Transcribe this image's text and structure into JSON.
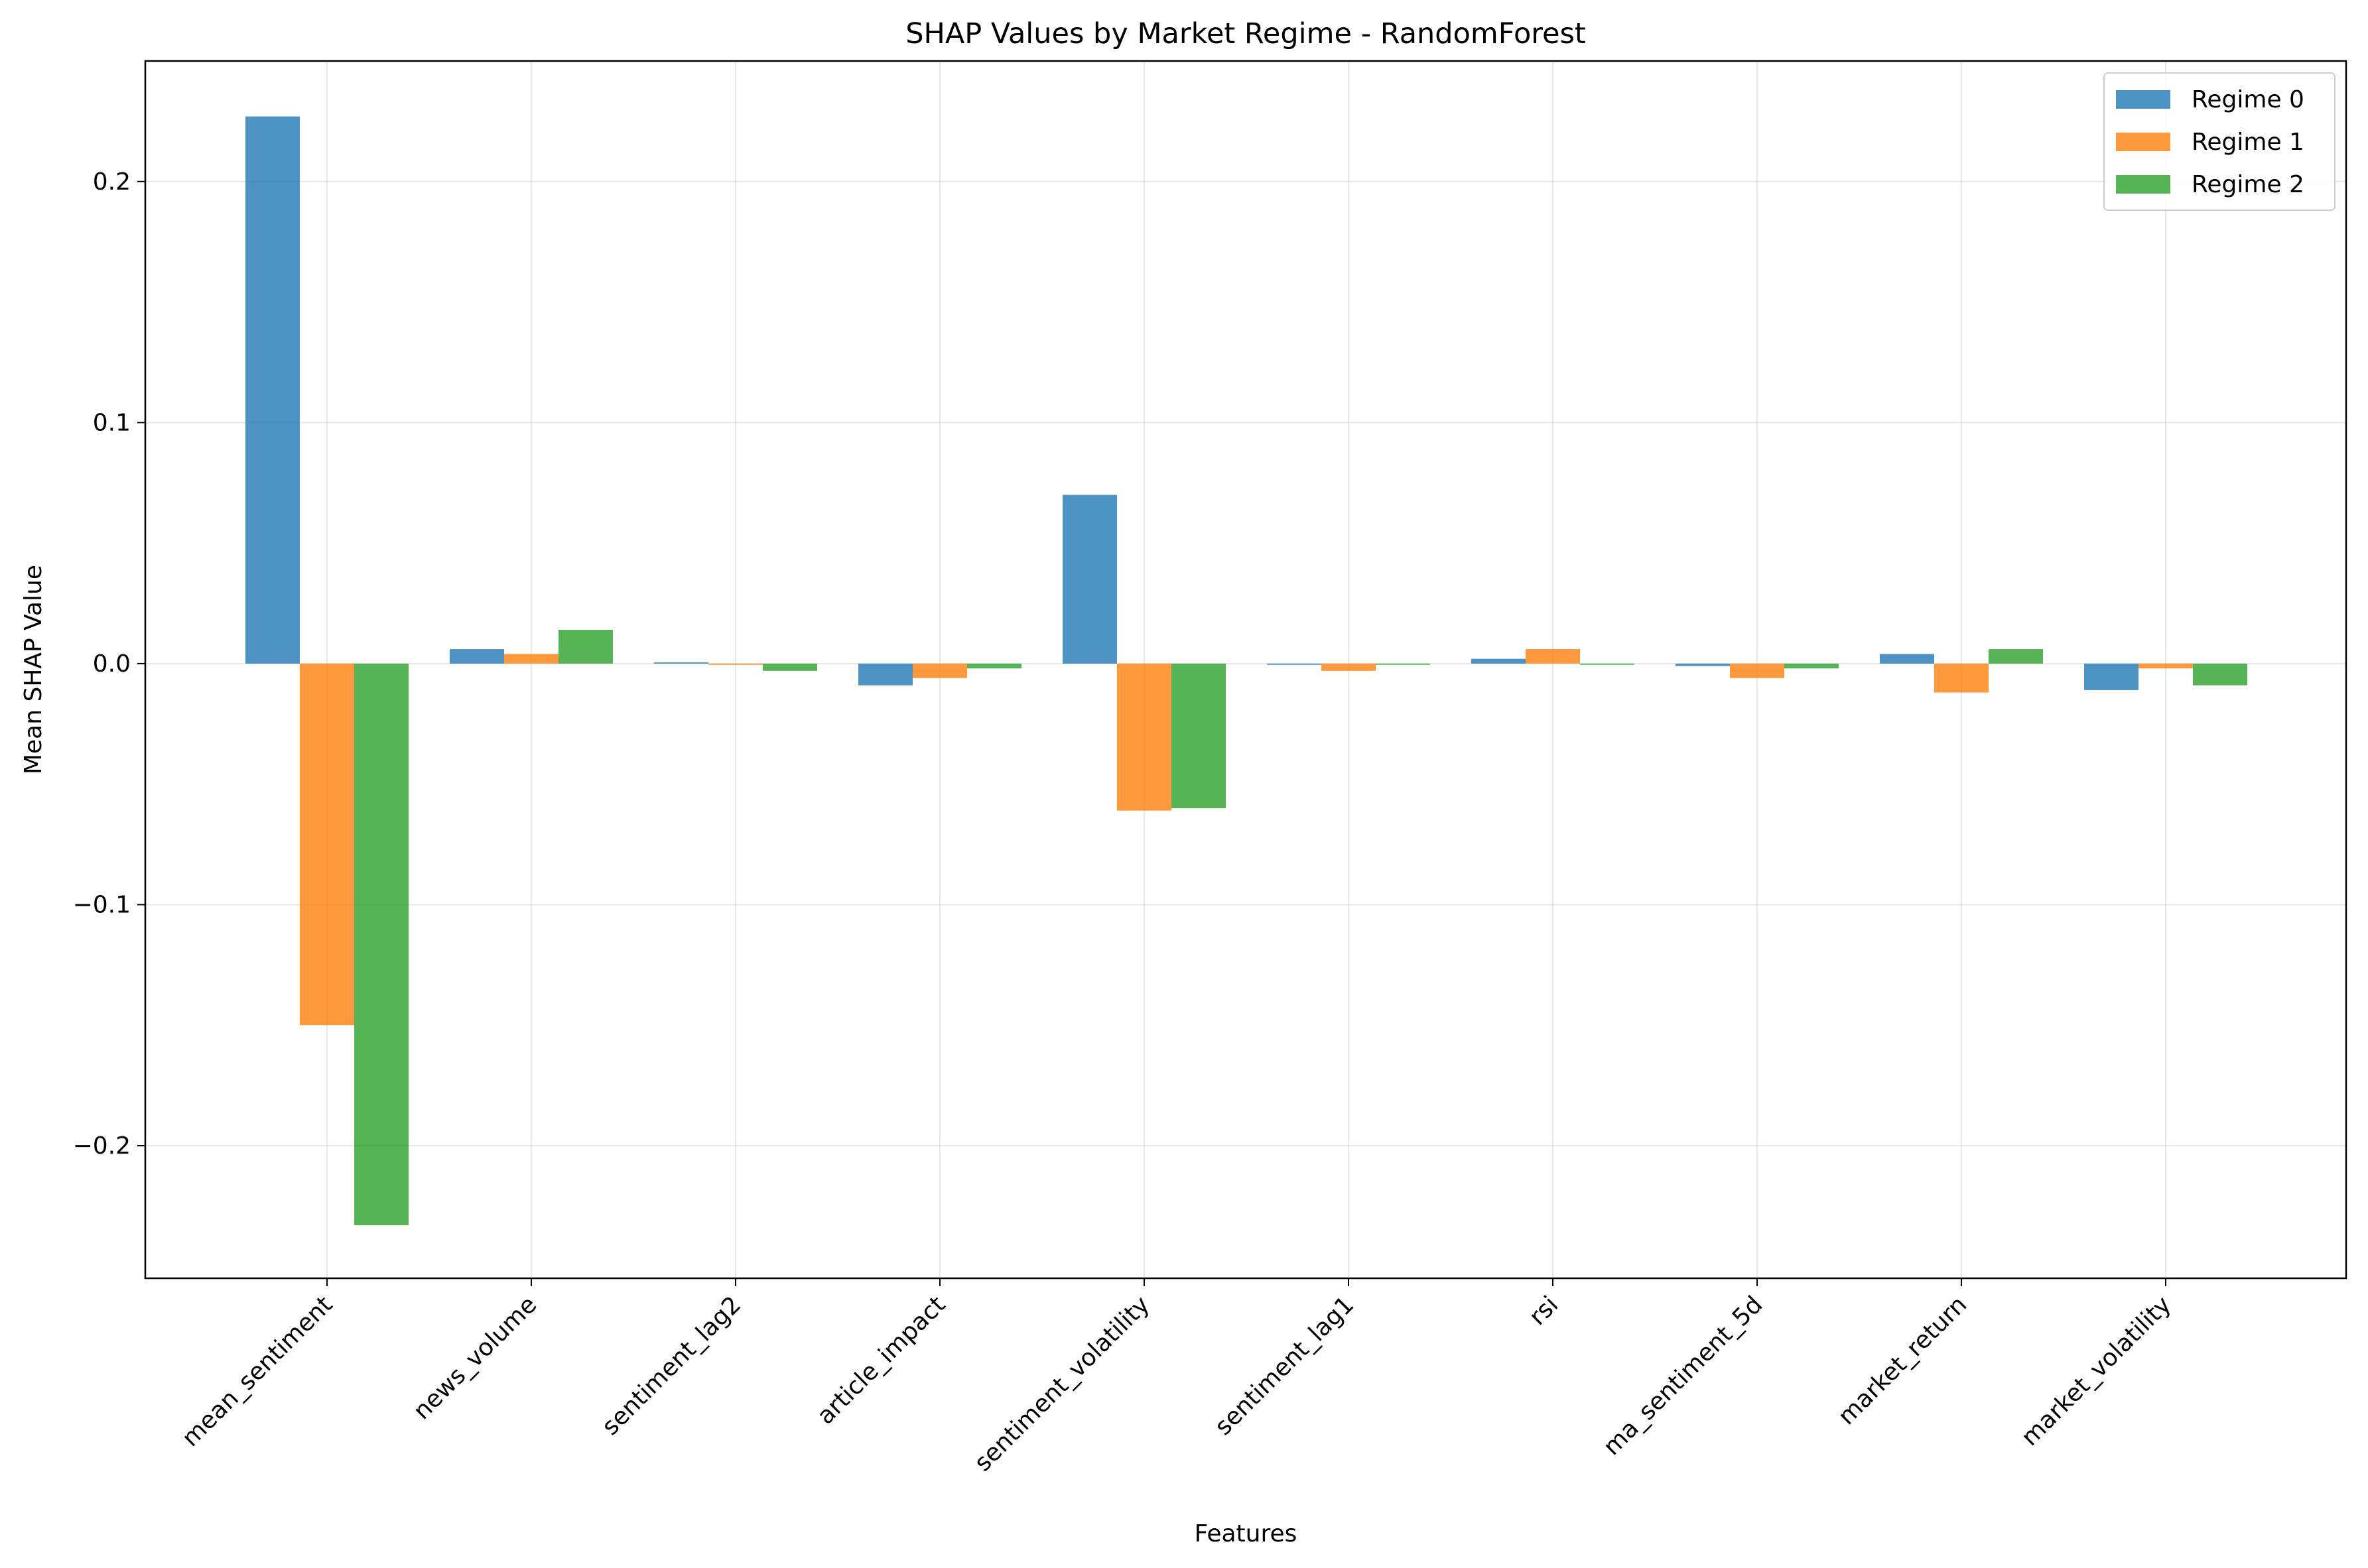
{
  "chart_data": {
    "type": "bar",
    "title": "SHAP Values by Market Regime - RandomForest",
    "xlabel": "Features",
    "ylabel": "Mean SHAP Value",
    "ylim": [
      -0.255,
      0.25
    ],
    "yticks": [
      -0.2,
      -0.1,
      0.0,
      0.1,
      0.2
    ],
    "ytick_labels": [
      "−0.2",
      "−0.1",
      "0.0",
      "0.1",
      "0.2"
    ],
    "grid": true,
    "legend_position": "top-right",
    "categories": [
      "mean_sentiment",
      "news_volume",
      "sentiment_lag2",
      "article_impact",
      "sentiment_volatility",
      "sentiment_lag1",
      "rsi",
      "ma_sentiment_5d",
      "market_return",
      "market_volatility"
    ],
    "series": [
      {
        "name": "Regime 0",
        "color": "#1f77b4",
        "values": [
          0.227,
          0.006,
          0.0005,
          -0.009,
          0.07,
          -0.0005,
          0.002,
          -0.001,
          0.004,
          -0.011
        ]
      },
      {
        "name": "Regime 1",
        "color": "#ff7f0e",
        "values": [
          -0.15,
          0.004,
          -0.0005,
          -0.006,
          -0.061,
          -0.003,
          0.006,
          -0.006,
          -0.012,
          -0.002
        ]
      },
      {
        "name": "Regime 2",
        "color": "#2ca02c",
        "values": [
          -0.233,
          0.014,
          -0.003,
          -0.002,
          -0.06,
          -0.0005,
          -0.0005,
          -0.002,
          0.006,
          -0.009
        ]
      }
    ]
  }
}
